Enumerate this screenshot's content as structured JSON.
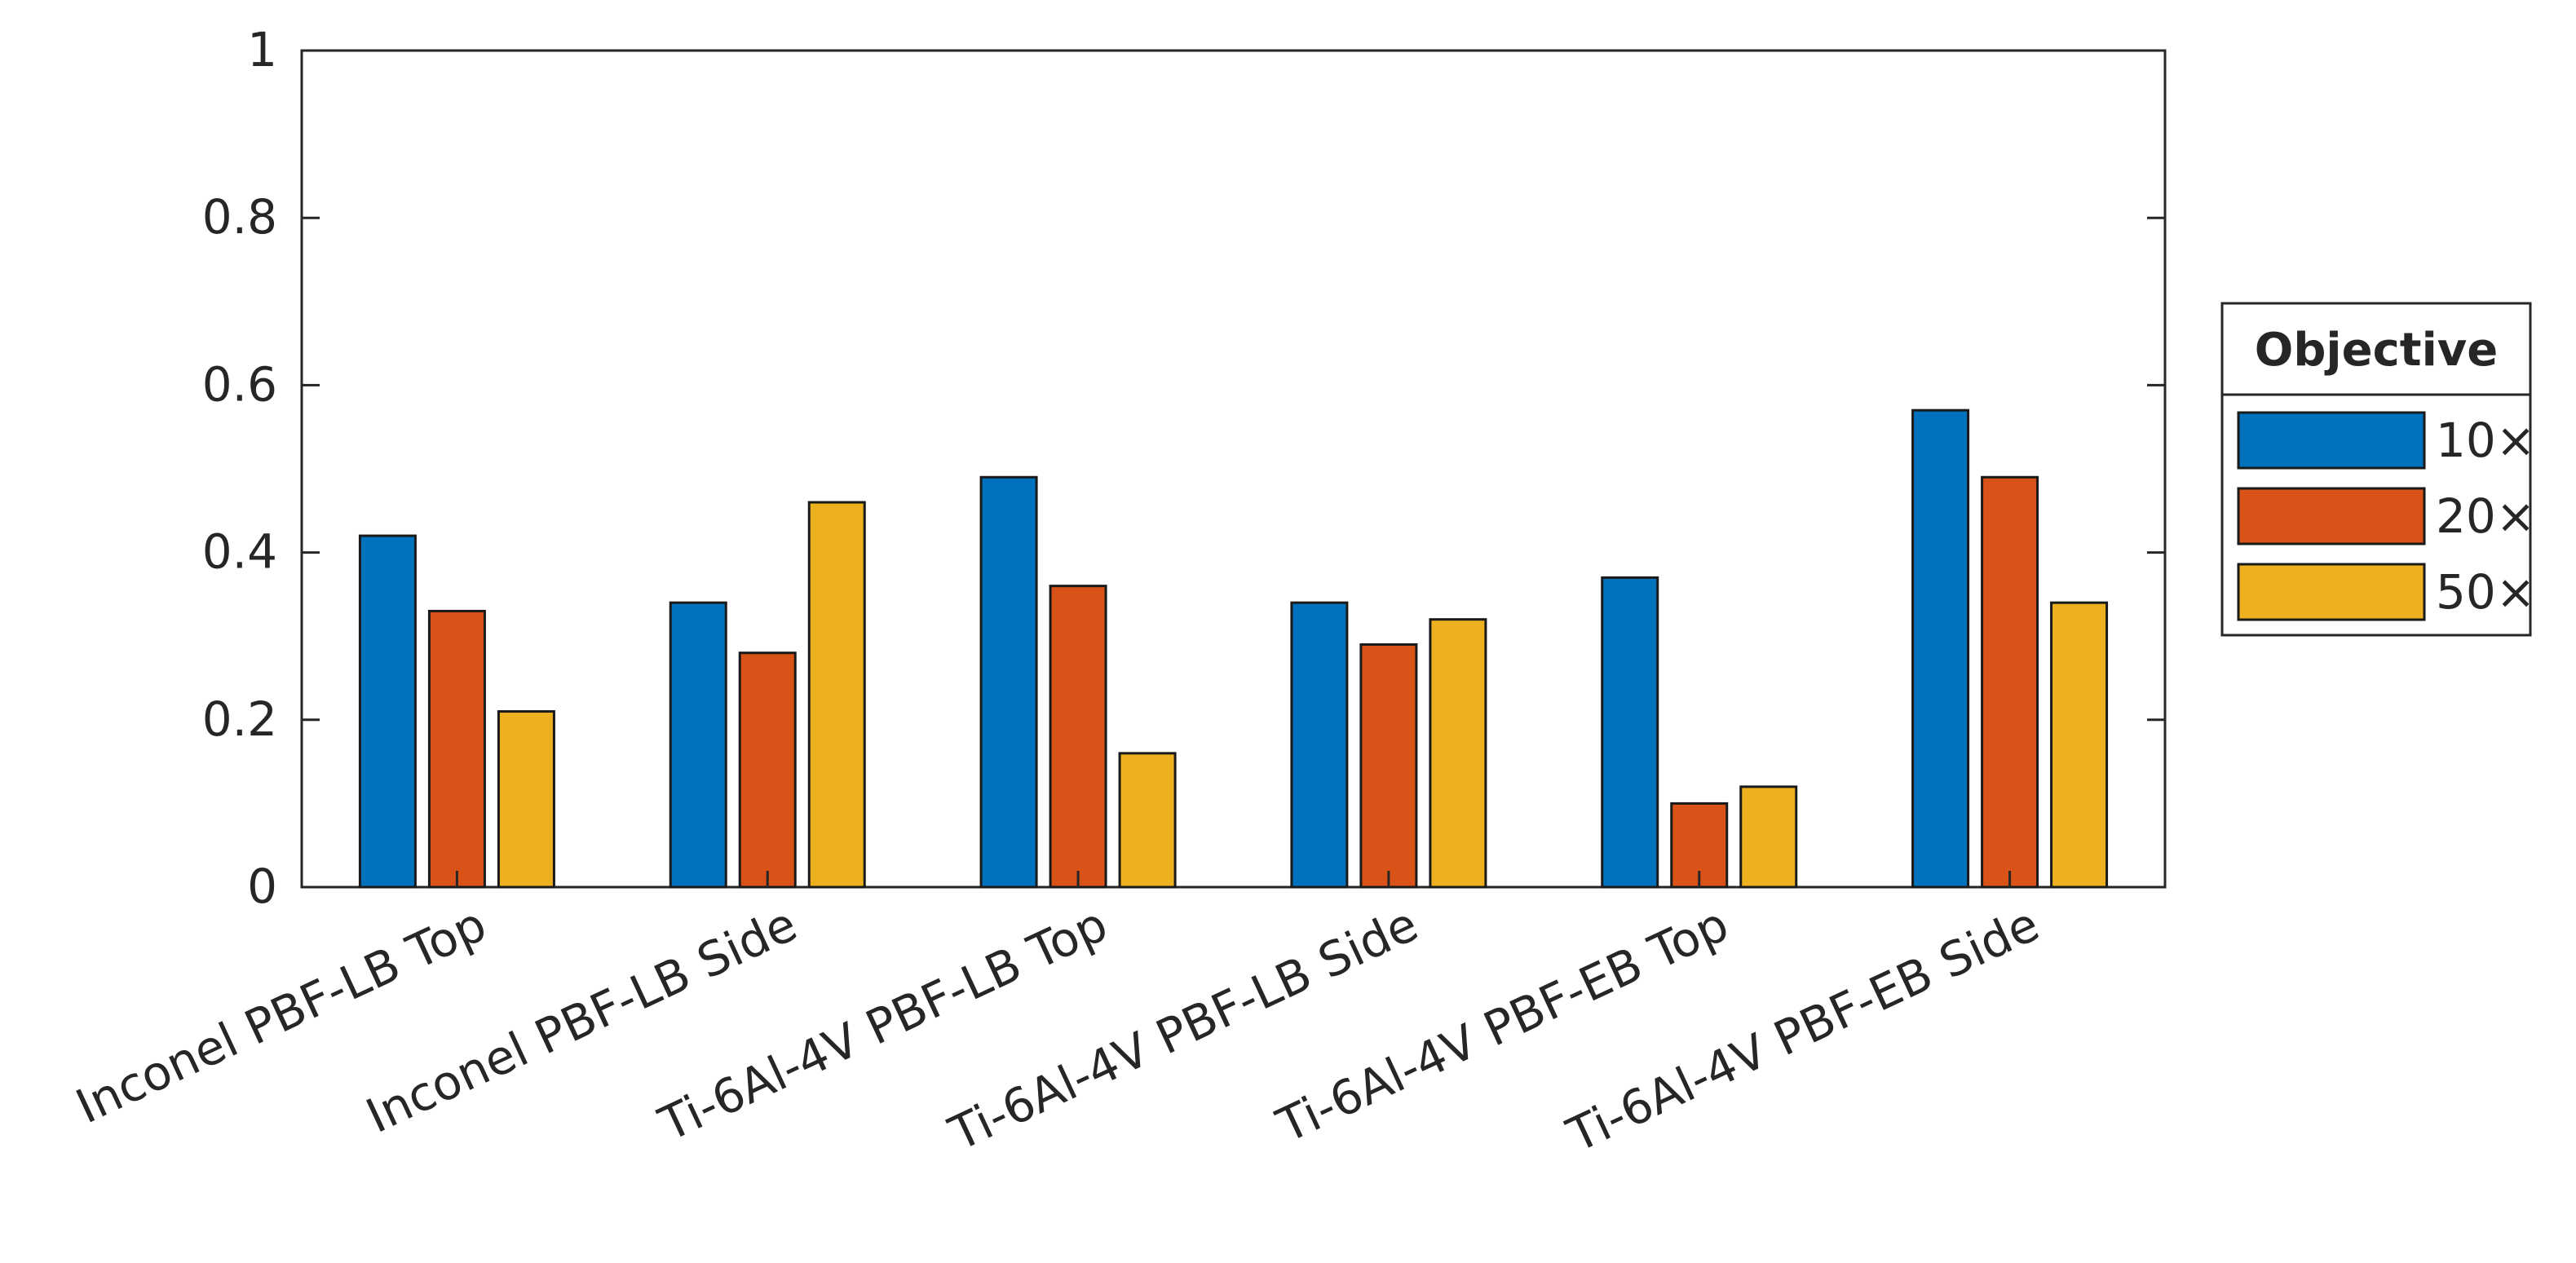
{
  "chart_data": {
    "type": "bar",
    "categories": [
      "Inconel PBF-LB Top",
      "Inconel PBF-LB Side",
      "Ti-6Al-4V PBF-LB Top",
      "Ti-6Al-4V PBF-LB Side",
      "Ti-6Al-4V PBF-EB Top",
      "Ti-6Al-4V PBF-EB Side"
    ],
    "series": [
      {
        "name": "10×",
        "color": "#0072BD",
        "values": [
          0.42,
          0.34,
          0.49,
          0.34,
          0.37,
          0.57
        ]
      },
      {
        "name": "20×",
        "color": "#D95319",
        "values": [
          0.33,
          0.28,
          0.36,
          0.29,
          0.1,
          0.49
        ]
      },
      {
        "name": "50×",
        "color": "#EDB120",
        "values": [
          0.21,
          0.46,
          0.16,
          0.32,
          0.12,
          0.34
        ]
      }
    ],
    "ylim": [
      0,
      1
    ],
    "yticks": [
      0,
      0.2,
      0.4,
      0.6,
      0.8,
      1
    ],
    "ytick_labels": [
      "0",
      "0.2",
      "0.4",
      "0.6",
      "0.8",
      "1"
    ],
    "xlabel": "",
    "ylabel": "",
    "title": "",
    "legend": {
      "title": "Objective",
      "placement": "right-outside"
    },
    "grid": false
  }
}
